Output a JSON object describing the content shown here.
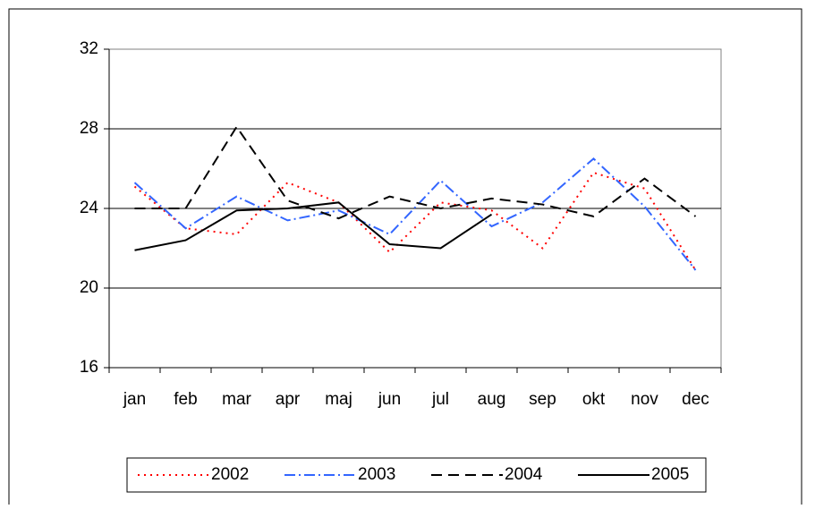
{
  "chart_data": {
    "type": "line",
    "categories": [
      "jan",
      "feb",
      "mar",
      "apr",
      "maj",
      "jun",
      "jul",
      "aug",
      "sep",
      "okt",
      "nov",
      "dec"
    ],
    "series": [
      {
        "name": "2002",
        "color": "#ff0000",
        "dash": "2,5",
        "values": [
          25.1,
          23.0,
          22.7,
          25.3,
          24.3,
          21.8,
          24.3,
          23.9,
          22.0,
          25.8,
          25.0,
          20.9
        ]
      },
      {
        "name": "2003",
        "color": "#3366ff",
        "dash": "12,4,2,4",
        "values": [
          25.3,
          23.0,
          24.6,
          23.4,
          23.9,
          22.7,
          25.4,
          23.1,
          24.3,
          26.5,
          24.1,
          20.9
        ]
      },
      {
        "name": "2004",
        "color": "#000000",
        "dash": "12,7",
        "values": [
          24.0,
          24.0,
          28.1,
          24.4,
          23.5,
          24.6,
          24.0,
          24.5,
          24.2,
          23.6,
          25.5,
          23.6
        ]
      },
      {
        "name": "2005",
        "color": "#000000",
        "dash": "none",
        "values": [
          21.9,
          22.4,
          23.9,
          24.0,
          24.3,
          22.2,
          22.0,
          23.7,
          null,
          null,
          null,
          null
        ]
      }
    ],
    "ylim": [
      16,
      32
    ],
    "yticks": [
      16,
      20,
      24,
      28,
      32
    ],
    "grid": true,
    "legend": "bottom"
  }
}
